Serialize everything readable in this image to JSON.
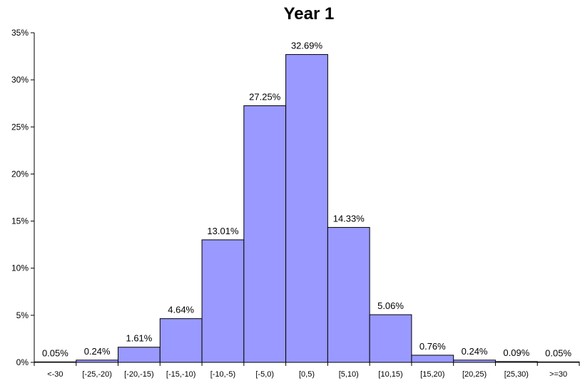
{
  "chart_data": {
    "type": "bar",
    "title": "Year 1",
    "xlabel": "",
    "ylabel": "",
    "categories": [
      "<-30",
      "[-25,-20)",
      "[-20,-15)",
      "[-15,-10)",
      "[-10,-5)",
      "[-5,0)",
      "[0,5)",
      "[5,10)",
      "[10,15)",
      "[15,20)",
      "[20,25)",
      "[25,30)",
      ">=30"
    ],
    "values": [
      0.05,
      0.24,
      1.61,
      4.64,
      13.01,
      27.25,
      32.69,
      14.33,
      5.06,
      0.76,
      0.24,
      0.09,
      0.05
    ],
    "data_labels": [
      "0.05%",
      "0.24%",
      "1.61%",
      "4.64%",
      "13.01%",
      "27.25%",
      "32.69%",
      "14.33%",
      "5.06%",
      "0.76%",
      "0.24%",
      "0.09%",
      "0.05%"
    ],
    "ylim": [
      0,
      35
    ],
    "yticks": [
      0,
      5,
      10,
      15,
      20,
      25,
      30,
      35
    ],
    "ytick_labels": [
      "0%",
      "5%",
      "10%",
      "15%",
      "20%",
      "25%",
      "30%",
      "35%"
    ],
    "grid": false,
    "legend": "none",
    "colors": {
      "bar_fill": "#9999ff",
      "bar_stroke": "#000000",
      "axis": "#000000"
    }
  }
}
